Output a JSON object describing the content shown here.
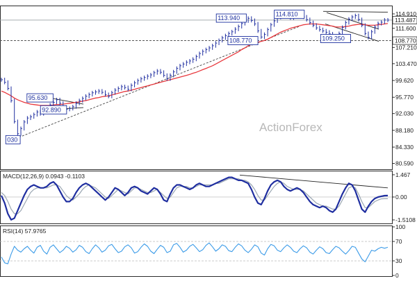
{
  "chart_data": {
    "type": "line",
    "watermark": "ActionForex",
    "main": {
      "y_ticks": [
        "114.910",
        "111.600",
        "107.210",
        "103.470",
        "99.620",
        "95.770",
        "92.030",
        "88.180",
        "84.330",
        "80.590"
      ],
      "y_tick_values": [
        114.91,
        111.6,
        107.21,
        103.47,
        99.62,
        95.77,
        92.03,
        88.18,
        84.33,
        80.59
      ],
      "ylim": [
        79.4,
        116.5
      ],
      "current_price": 113.487,
      "current_price_label": "113.487",
      "support_level": 108.77,
      "support_label": "108.770",
      "annotations": [
        {
          "label": "95.630",
          "value": 95.63,
          "t": 0.1
        },
        {
          "label": "92.890",
          "value": 92.89,
          "t": 0.135
        },
        {
          "label": "030",
          "value": 86.03,
          "t": 0.03
        },
        {
          "label": "113.940",
          "value": 113.94,
          "t": 0.595
        },
        {
          "label": "114.810",
          "value": 114.81,
          "t": 0.745
        },
        {
          "label": "108.770",
          "value": 108.77,
          "t": 0.625
        },
        {
          "label": "109.250",
          "value": 109.25,
          "t": 0.865
        }
      ],
      "price_close": [
        99.8,
        99.2,
        97.8,
        95.0,
        90.2,
        87.4,
        88.6,
        90.1,
        91.0,
        91.3,
        91.8,
        92.4,
        92.0,
        92.6,
        93.4,
        94.0,
        94.6,
        95.2,
        94.4,
        93.5,
        93.0,
        93.2,
        93.6,
        94.4,
        95.0,
        95.5,
        96.0,
        96.4,
        96.8,
        97.0,
        97.2,
        96.9,
        96.4,
        96.0,
        96.8,
        97.4,
        97.8,
        98.2,
        98.0,
        97.6,
        98.5,
        99.1,
        99.6,
        100.0,
        100.3,
        100.6,
        100.9,
        101.4,
        101.8,
        101.5,
        100.8,
        100.0,
        100.8,
        101.6,
        102.4,
        103.0,
        103.4,
        103.8,
        104.1,
        104.5,
        105.1,
        105.8,
        106.3,
        106.7,
        107.1,
        107.6,
        108.2,
        108.8,
        109.4,
        109.9,
        110.4,
        110.8,
        111.4,
        112.0,
        112.7,
        113.3,
        113.9,
        113.4,
        112.6,
        111.0,
        109.6,
        110.2,
        111.3,
        112.4,
        113.3,
        114.1,
        114.6,
        114.8,
        114.4,
        114.0,
        114.3,
        114.7,
        114.6,
        114.2,
        113.6,
        112.9,
        112.3,
        111.7,
        111.3,
        111.0,
        110.7,
        110.3,
        109.8,
        109.3,
        110.4,
        111.8,
        112.9,
        113.7,
        114.2,
        114.5,
        113.6,
        112.3,
        110.4,
        109.5,
        110.8,
        111.9,
        112.7,
        113.0,
        113.5,
        113.487
      ],
      "sma": [
        97.2,
        96.9,
        96.5,
        96.1,
        95.6,
        95.2,
        94.9,
        94.6,
        94.4,
        94.2,
        94.1,
        94.0,
        93.9,
        93.9,
        93.9,
        93.9,
        94.0,
        94.1,
        94.1,
        94.2,
        94.3,
        94.4,
        94.5,
        94.6,
        94.7,
        94.9,
        95.0,
        95.2,
        95.4,
        95.6,
        95.7,
        95.9,
        96.0,
        96.1,
        96.3,
        96.5,
        96.7,
        96.9,
        97.1,
        97.2,
        97.4,
        97.6,
        97.8,
        98.0,
        98.2,
        98.4,
        98.6,
        98.8,
        99.0,
        99.2,
        99.4,
        99.6,
        99.8,
        100.0,
        100.2,
        100.4,
        100.6,
        100.8,
        101.0,
        101.3,
        101.5,
        101.8,
        102.1,
        102.4,
        102.7,
        103.0,
        103.4,
        103.8,
        104.2,
        104.6,
        105.0,
        105.4,
        105.8,
        106.2,
        106.7,
        107.1,
        107.6,
        107.9,
        108.2,
        108.4,
        108.6,
        108.8,
        109.1,
        109.5,
        109.9,
        110.3,
        110.7,
        111.0,
        111.3,
        111.6,
        111.8,
        112.0,
        112.2,
        112.4,
        112.5,
        112.6,
        112.6,
        112.6,
        112.5,
        112.4,
        112.3,
        112.2,
        112.1,
        111.9,
        111.9,
        111.9,
        112.0,
        112.1,
        112.3,
        112.4,
        112.5,
        112.5,
        112.4,
        112.3,
        112.3,
        112.3,
        112.4,
        112.5,
        112.6,
        112.7
      ]
    },
    "macd": {
      "label": "MACD(12,26,9) 0.0943 -0.1103",
      "y_ticks": [
        "1.467",
        "0.00",
        "-1.5108"
      ],
      "y_tick_values": [
        1.467,
        0.0,
        -1.5108
      ],
      "ylim": [
        -1.65,
        1.6
      ],
      "macd": [
        0.1,
        -0.4,
        -1.1,
        -1.5,
        -1.4,
        -0.9,
        -0.4,
        0.1,
        0.5,
        0.7,
        0.8,
        0.7,
        0.6,
        0.6,
        0.7,
        0.9,
        1.0,
        0.8,
        0.4,
        0.0,
        -0.3,
        -0.3,
        -0.1,
        0.3,
        0.6,
        0.8,
        0.9,
        0.8,
        0.6,
        0.4,
        0.2,
        0.0,
        -0.2,
        0.0,
        0.3,
        0.6,
        0.5,
        0.3,
        0.1,
        0.3,
        0.6,
        0.7,
        0.6,
        0.4,
        0.3,
        0.2,
        0.4,
        0.6,
        0.5,
        0.2,
        -0.2,
        -0.3,
        0.2,
        0.6,
        0.8,
        0.8,
        0.7,
        0.6,
        0.5,
        0.6,
        0.8,
        0.9,
        0.8,
        0.7,
        0.7,
        0.8,
        0.9,
        1.0,
        1.1,
        1.2,
        1.3,
        1.3,
        1.2,
        1.1,
        1.1,
        1.0,
        0.9,
        0.5,
        0.0,
        -0.4,
        -0.5,
        -0.1,
        0.4,
        0.8,
        1.0,
        1.1,
        1.0,
        0.7,
        0.5,
        0.4,
        0.5,
        0.6,
        0.5,
        0.3,
        0.0,
        -0.3,
        -0.5,
        -0.6,
        -0.7,
        -0.6,
        -0.7,
        -0.9,
        -1.0,
        -0.8,
        -0.3,
        0.2,
        0.6,
        0.9,
        0.8,
        0.4,
        -0.2,
        -0.8,
        -1.0,
        -0.6,
        -0.3,
        -0.1,
        0.0,
        0.05,
        0.09,
        0.0943
      ],
      "signal": [
        0.3,
        0.1,
        -0.3,
        -0.8,
        -1.1,
        -1.1,
        -0.9,
        -0.5,
        -0.1,
        0.3,
        0.5,
        0.6,
        0.6,
        0.6,
        0.6,
        0.7,
        0.8,
        0.8,
        0.7,
        0.4,
        0.1,
        -0.1,
        -0.2,
        0.0,
        0.2,
        0.5,
        0.7,
        0.8,
        0.7,
        0.6,
        0.4,
        0.2,
        0.0,
        -0.1,
        0.1,
        0.3,
        0.5,
        0.4,
        0.3,
        0.2,
        0.4,
        0.6,
        0.6,
        0.5,
        0.4,
        0.3,
        0.3,
        0.4,
        0.5,
        0.3,
        0.1,
        -0.1,
        0.0,
        0.3,
        0.6,
        0.7,
        0.7,
        0.7,
        0.6,
        0.6,
        0.7,
        0.8,
        0.8,
        0.8,
        0.8,
        0.8,
        0.9,
        0.9,
        1.0,
        1.1,
        1.2,
        1.2,
        1.2,
        1.2,
        1.1,
        1.1,
        1.0,
        0.8,
        0.5,
        0.1,
        -0.2,
        -0.2,
        0.1,
        0.4,
        0.7,
        0.9,
        1.0,
        0.9,
        0.7,
        0.6,
        0.5,
        0.5,
        0.5,
        0.4,
        0.2,
        0.0,
        -0.2,
        -0.4,
        -0.5,
        -0.6,
        -0.6,
        -0.7,
        -0.8,
        -0.8,
        -0.6,
        -0.2,
        0.2,
        0.6,
        0.7,
        0.6,
        0.2,
        -0.3,
        -0.7,
        -0.7,
        -0.5,
        -0.3,
        -0.2,
        -0.12,
        -0.11,
        -0.1103
      ]
    },
    "rsi": {
      "label": "RSI(14) 57.9765",
      "y_ticks": [
        "100",
        "70",
        "30",
        "0"
      ],
      "y_tick_values": [
        100,
        70,
        30,
        0
      ],
      "ylim": [
        0,
        100
      ],
      "values": [
        38,
        26,
        24,
        44,
        60,
        52,
        48,
        55,
        60,
        52,
        46,
        58,
        62,
        50,
        44,
        58,
        63,
        55,
        47,
        52,
        60,
        56,
        48,
        53,
        62,
        58,
        49,
        45,
        55,
        63,
        57,
        48,
        52,
        61,
        64,
        55,
        47,
        50,
        59,
        63,
        57,
        46,
        49,
        58,
        65,
        60,
        50,
        45,
        54,
        62,
        58,
        47,
        50,
        63,
        66,
        58,
        48,
        52,
        60,
        64,
        57,
        49,
        53,
        62,
        67,
        59,
        50,
        55,
        63,
        60,
        51,
        49,
        58,
        65,
        61,
        52,
        47,
        54,
        63,
        59,
        46,
        42,
        55,
        64,
        61,
        52,
        49,
        57,
        63,
        58,
        50,
        47,
        55,
        61,
        57,
        48,
        44,
        52,
        59,
        55,
        47,
        45,
        53,
        60,
        57,
        50,
        44,
        51,
        60,
        58,
        46,
        34,
        28,
        40,
        52,
        50,
        55,
        58,
        56,
        57.9765
      ]
    }
  }
}
